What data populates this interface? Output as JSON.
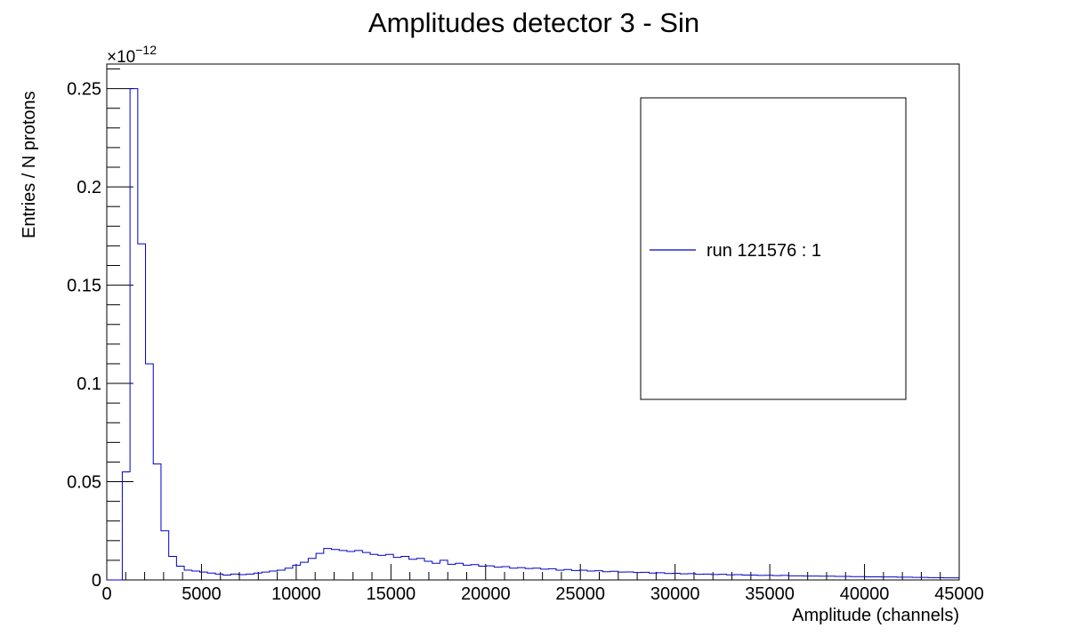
{
  "chart_data": {
    "type": "histogram",
    "title": "Amplitudes detector 3 - Sin",
    "xlabel": "Amplitude (channels)",
    "ylabel": "Entries / N protons",
    "y_multiplier": "×10",
    "y_multiplier_exp": "−12",
    "xlim": [
      0,
      45000
    ],
    "ylim": [
      0,
      0.2625
    ],
    "x_ticks": [
      0,
      5000,
      10000,
      15000,
      20000,
      25000,
      30000,
      35000,
      40000,
      45000
    ],
    "x_tick_labels": [
      "0",
      "5000",
      "10000",
      "15000",
      "20000",
      "25000",
      "30000",
      "35000",
      "40000",
      "45000"
    ],
    "y_ticks": [
      0,
      0.05,
      0.1,
      0.15,
      0.2,
      0.25
    ],
    "y_tick_labels": [
      "0",
      "0.05",
      "0.1",
      "0.15",
      "0.2",
      "0.25"
    ],
    "bin_width": 409,
    "bin_start": 0,
    "bin_values": [
      0,
      0,
      0.055,
      0.25,
      0.171,
      0.11,
      0.059,
      0.025,
      0.012,
      0.007,
      0.005,
      0.0045,
      0.004,
      0.0035,
      0.003,
      0.0025,
      0.003,
      0.0027,
      0.003,
      0.0035,
      0.004,
      0.0045,
      0.005,
      0.006,
      0.0075,
      0.009,
      0.011,
      0.0135,
      0.016,
      0.0155,
      0.015,
      0.0145,
      0.015,
      0.014,
      0.013,
      0.0125,
      0.013,
      0.0115,
      0.012,
      0.0105,
      0.011,
      0.0095,
      0.0085,
      0.01,
      0.008,
      0.0085,
      0.0075,
      0.0078,
      0.007,
      0.0072,
      0.0065,
      0.0068,
      0.006,
      0.0063,
      0.0058,
      0.006,
      0.0055,
      0.0057,
      0.005,
      0.0053,
      0.0048,
      0.005,
      0.0045,
      0.0047,
      0.0042,
      0.0044,
      0.004,
      0.0041,
      0.0038,
      0.0039,
      0.0035,
      0.0037,
      0.0033,
      0.0034,
      0.0031,
      0.0032,
      0.0029,
      0.003,
      0.0028,
      0.0029,
      0.0026,
      0.0027,
      0.0025,
      0.0025,
      0.0023,
      0.0024,
      0.0022,
      0.0023,
      0.0021,
      0.0021,
      0.002,
      0.002,
      0.0019,
      0.0019,
      0.0018,
      0.0018,
      0.0017,
      0.0017,
      0.0016,
      0.0016,
      0.0015,
      0.0015,
      0.0014,
      0.0014,
      0.0013,
      0.0013,
      0.0012,
      0.0012,
      0.0011,
      0.0011
    ],
    "series": [
      {
        "name": "run 121576 : 1",
        "color": "#0000cc"
      }
    ],
    "legend_placement": "top-right",
    "grid": false
  }
}
